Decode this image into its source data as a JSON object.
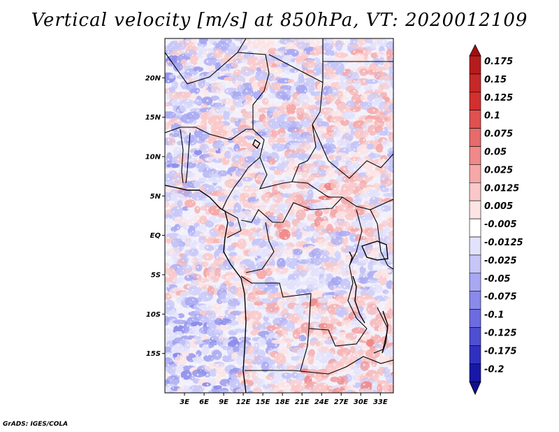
{
  "title": "Vertical velocity [m/s] at 850hPa, VT: 2020012109",
  "footer": "GrADS: IGES/COLA",
  "map": {
    "lon_range": [
      0,
      35
    ],
    "lat_range": [
      -20,
      25
    ],
    "lat_ticks": [
      {
        "value": 20,
        "label": "20N"
      },
      {
        "value": 15,
        "label": "15N"
      },
      {
        "value": 10,
        "label": "10N"
      },
      {
        "value": 5,
        "label": "5N"
      },
      {
        "value": 0,
        "label": "EQ"
      },
      {
        "value": -5,
        "label": "5S"
      },
      {
        "value": -10,
        "label": "10S"
      },
      {
        "value": -15,
        "label": "15S"
      }
    ],
    "lon_ticks": [
      {
        "value": 3,
        "label": "3E"
      },
      {
        "value": 6,
        "label": "6E"
      },
      {
        "value": 9,
        "label": "9E"
      },
      {
        "value": 12,
        "label": "12E"
      },
      {
        "value": 15,
        "label": "15E"
      },
      {
        "value": 18,
        "label": "18E"
      },
      {
        "value": 21,
        "label": "21E"
      },
      {
        "value": 24,
        "label": "24E"
      },
      {
        "value": 27,
        "label": "27E"
      },
      {
        "value": 30,
        "label": "30E"
      },
      {
        "value": 33,
        "label": "33E"
      }
    ]
  },
  "colorbar": {
    "levels": [
      {
        "label": "0.175",
        "color": "#b71c1c"
      },
      {
        "label": "0.15",
        "color": "#c62828"
      },
      {
        "label": "0.125",
        "color": "#d32f2f"
      },
      {
        "label": "0.1",
        "color": "#e05050"
      },
      {
        "label": "0.075",
        "color": "#e86a6a"
      },
      {
        "label": "0.05",
        "color": "#f08a8a"
      },
      {
        "label": "0.025",
        "color": "#f6a8a8"
      },
      {
        "label": "0.0125",
        "color": "#fac8c8"
      },
      {
        "label": "0.005",
        "color": "#fde4e4"
      },
      {
        "label": "-0.005",
        "color": "#ffffff"
      },
      {
        "label": "-0.0125",
        "color": "#e2e2fc"
      },
      {
        "label": "-0.025",
        "color": "#c6c6f8"
      },
      {
        "label": "-0.05",
        "color": "#a8a8f2"
      },
      {
        "label": "-0.075",
        "color": "#8a8aea"
      },
      {
        "label": "-0.1",
        "color": "#6c6ce0"
      },
      {
        "label": "-0.125",
        "color": "#4e4ed2"
      },
      {
        "label": "-0.175",
        "color": "#3030c0"
      },
      {
        "label": "-0.2",
        "color": "#1818a8"
      }
    ],
    "top_arrow_color": "#a01010",
    "bottom_arrow_color": "#10108c"
  }
}
